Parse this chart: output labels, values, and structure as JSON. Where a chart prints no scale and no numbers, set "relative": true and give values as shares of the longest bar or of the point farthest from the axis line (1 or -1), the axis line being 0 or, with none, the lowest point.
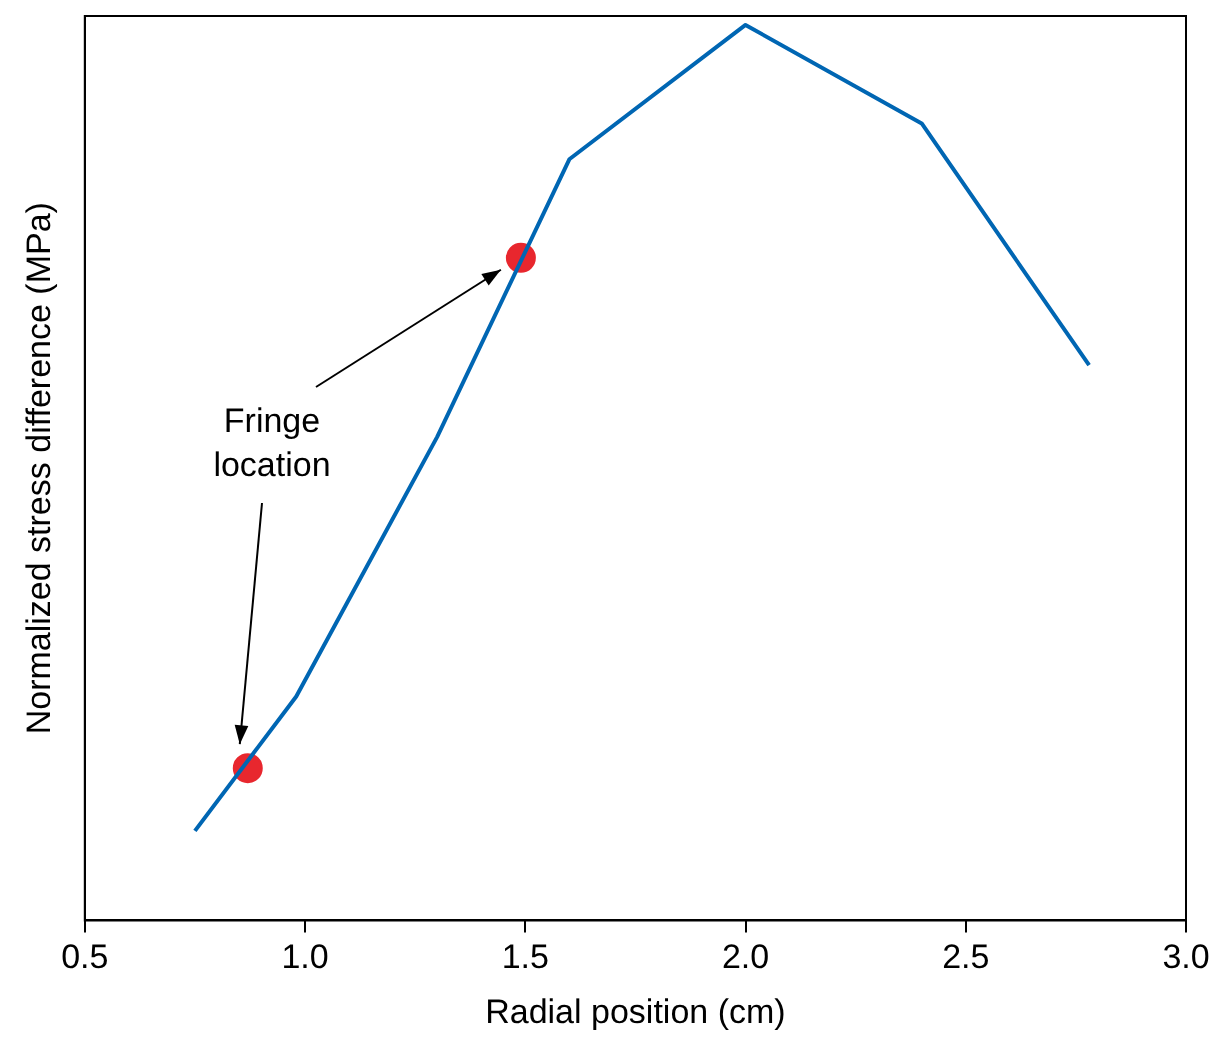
{
  "chart_data": {
    "type": "line",
    "relative": true,
    "xlabel": "Radial position (cm)",
    "ylabel": "Normalized stress difference (MPa)",
    "xlim": [
      0.5,
      3.0
    ],
    "xticks": [
      {
        "value": 0.5,
        "label": "0.5"
      },
      {
        "value": 1,
        "label": "1.0"
      },
      {
        "value": 1.5,
        "label": "1.5"
      },
      {
        "value": 2,
        "label": "2.0"
      },
      {
        "value": 2.5,
        "label": "2.5"
      },
      {
        "value": 3,
        "label": "3.0"
      }
    ],
    "grid": false,
    "legend": false,
    "annotations": [
      "Fringe\nlocation"
    ],
    "series": [
      {
        "color": "#0066b3",
        "x": [
          0.75,
          0.98,
          1.3,
          1.6,
          2.0,
          2.4,
          2.78
        ],
        "values": [
          0.1,
          0.25,
          0.54,
          0.85,
          1.0,
          0.89,
          0.62
        ]
      },
      {
        "type": "scatter",
        "color": "#e8272e",
        "marker": "circle",
        "x": [
          0.87,
          1.49
        ],
        "values": [
          0.17,
          0.74
        ]
      }
    ]
  }
}
